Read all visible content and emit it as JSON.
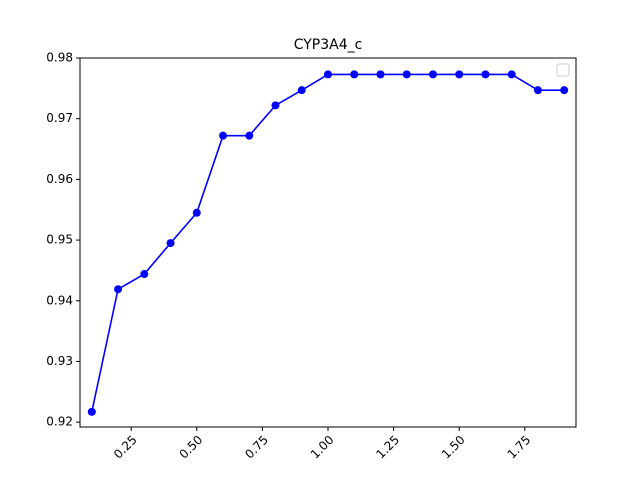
{
  "chart_data": {
    "type": "line",
    "title": "CYP3A4_c",
    "xlabel": "",
    "ylabel": "",
    "xlim": [
      0.055,
      1.945
    ],
    "ylim": [
      0.9192,
      0.98
    ],
    "x_ticks": [
      0.25,
      0.5,
      0.75,
      1.0,
      1.25,
      1.5,
      1.75
    ],
    "x_tick_labels": [
      "0.25",
      "0.50",
      "0.75",
      "1.00",
      "1.25",
      "1.50",
      "1.75"
    ],
    "y_ticks": [
      0.92,
      0.93,
      0.94,
      0.95,
      0.96,
      0.97,
      0.98
    ],
    "y_tick_labels": [
      "0.92",
      "0.93",
      "0.94",
      "0.95",
      "0.96",
      "0.97",
      "0.98"
    ],
    "grid": false,
    "legend": {
      "position": "top-right",
      "entries": []
    },
    "series": [
      {
        "color": "#0000ff",
        "marker": "circle",
        "x": [
          0.1,
          0.2,
          0.3,
          0.4,
          0.5,
          0.6,
          0.7,
          0.8,
          0.9,
          1.0,
          1.1,
          1.2,
          1.3,
          1.4,
          1.5,
          1.6,
          1.7,
          1.8,
          1.9
        ],
        "y": [
          0.9217,
          0.9419,
          0.9444,
          0.9495,
          0.9545,
          0.9672,
          0.9672,
          0.9722,
          0.9747,
          0.9773,
          0.9773,
          0.9773,
          0.9773,
          0.9773,
          0.9773,
          0.9773,
          0.9773,
          0.9747,
          0.9747
        ]
      }
    ]
  }
}
